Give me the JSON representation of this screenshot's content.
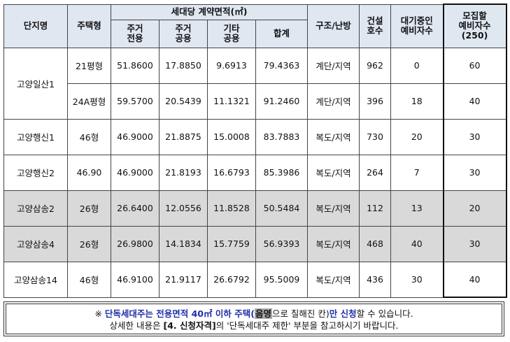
{
  "header": {
    "complex": "단지명",
    "house_type": "주택형",
    "area_group": "세대당 계약면적(㎡)",
    "area_private_1": "주거",
    "area_private_2": "전용",
    "area_common_1": "주거",
    "area_common_2": "공용",
    "area_other_1": "기타",
    "area_other_2": "공용",
    "area_total": "합계",
    "structure": "구조/난방",
    "built_1": "건설",
    "built_2": "호수",
    "waiting_1": "대기중인",
    "waiting_2": "예비자수",
    "recruit_1": "모집할",
    "recruit_2": "예비자수",
    "recruit_3": "(250)"
  },
  "rows": [
    {
      "complex": "고양일산1",
      "type": "21평형",
      "private": "51.8600",
      "common": "17.8850",
      "other": "9.6913",
      "total": "79.4363",
      "structure": "계단/지역",
      "built": "962",
      "waiting": "0",
      "recruit": "60"
    },
    {
      "complex": "",
      "type": "24A평형",
      "private": "59.5700",
      "common": "20.5439",
      "other": "11.1321",
      "total": "91.2460",
      "structure": "계단/지역",
      "built": "396",
      "waiting": "18",
      "recruit": "40"
    },
    {
      "complex": "고양행신1",
      "type": "46형",
      "private": "46.9000",
      "common": "21.8875",
      "other": "15.0008",
      "total": "83.7883",
      "structure": "복도/지역",
      "built": "730",
      "waiting": "20",
      "recruit": "30"
    },
    {
      "complex": "고양행신2",
      "type": "46.90",
      "private": "46.9000",
      "common": "21.8193",
      "other": "16.6793",
      "total": "85.3986",
      "structure": "복도/지역",
      "built": "264",
      "waiting": "7",
      "recruit": "30"
    },
    {
      "complex": "고양삼송2",
      "type": "26형",
      "private": "26.6400",
      "common": "12.0556",
      "other": "11.8528",
      "total": "50.5484",
      "structure": "복도/지역",
      "built": "112",
      "waiting": "13",
      "recruit": "20"
    },
    {
      "complex": "고양삼송4",
      "type": "26형",
      "private": "26.9800",
      "common": "14.1834",
      "other": "15.7759",
      "total": "56.9393",
      "structure": "복도/지역",
      "built": "468",
      "waiting": "40",
      "recruit": "30"
    },
    {
      "complex": "고양삼송14",
      "type": "46형",
      "private": "46.9100",
      "common": "21.9117",
      "other": "26.6792",
      "total": "95.5009",
      "structure": "복도/지역",
      "built": "436",
      "waiting": "30",
      "recruit": "40"
    }
  ],
  "note": {
    "mark": "※",
    "line1_a": "단독세대주는 전용면적 40㎡ 이하 주택(",
    "line1_chip": "음영",
    "line1_b": "으로 칠해진 칸)만 신청",
    "line1_c": "할 수 있습니다.",
    "line2_a": "상세한 내용은 ",
    "line2_b": "[4. 신청자격]",
    "line2_c": "의 '단독세대주 제한' 부분을 참고하시기 바랍니다."
  }
}
